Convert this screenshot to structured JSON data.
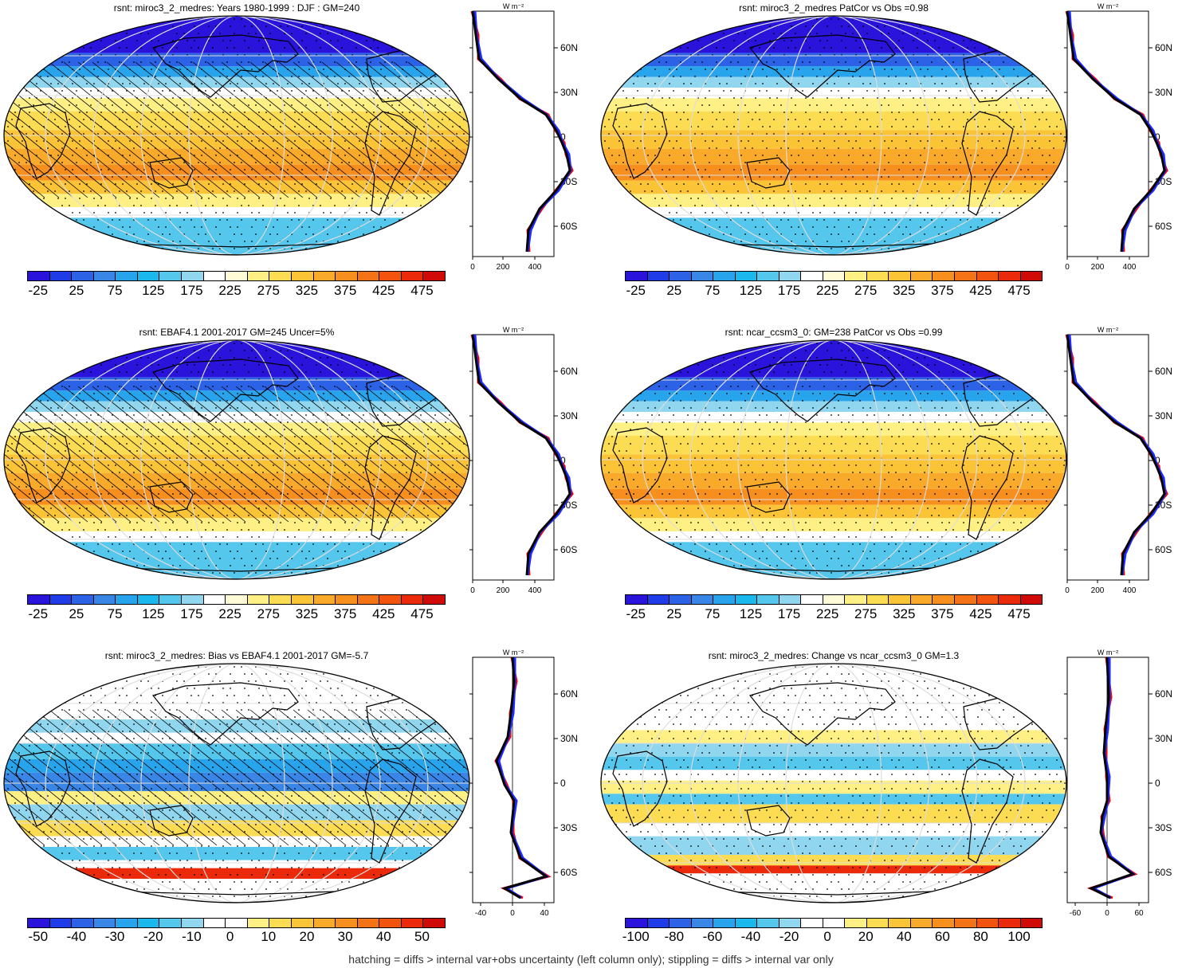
{
  "footer": "hatching = diffs > internal var+obs uncertainty (left column only); stippling = diffs > internal var only",
  "lat_labels": [
    "60N",
    "30N",
    "0",
    "30S",
    "60S"
  ],
  "zonal_unit": "W m⁻²",
  "palettes": {
    "abs": [
      "#2a14dc",
      "#1f3ce8",
      "#2b62e6",
      "#3a86e6",
      "#28a4ec",
      "#1ab8ec",
      "#55c6ec",
      "#8fd6ee",
      "#ffffff",
      "#fffbd6",
      "#fff086",
      "#fcdc52",
      "#fbc437",
      "#f9aa2a",
      "#f78f1e",
      "#f57317",
      "#f25410",
      "#ea2a0a",
      "#d00a06"
    ],
    "bias": [
      "#2a14dc",
      "#1f3ce8",
      "#2b62e6",
      "#3a86e6",
      "#28a4ec",
      "#1ab8ec",
      "#55c6ec",
      "#8fd6ee",
      "#ffffff",
      "#ffffff",
      "#fff086",
      "#fcdc52",
      "#fbc437",
      "#f9aa2a",
      "#f78f1e",
      "#f57317",
      "#f25410",
      "#ea2a0a",
      "#d00a06"
    ]
  },
  "panels": [
    {
      "id": "p1",
      "title": "rsnt: miroc3_2_medres: Years 1980-1999 : DJF : GM=240",
      "colorbar_labels": [
        "-25",
        "25",
        "75",
        "125",
        "175",
        "225",
        "275",
        "325",
        "375",
        "425",
        "475"
      ],
      "palette": "abs",
      "zonal_ticks": [
        "0",
        "200",
        "400"
      ]
    },
    {
      "id": "p2",
      "title": "rsnt: miroc3_2_medres PatCor vs Obs =0.98",
      "colorbar_labels": [
        "-25",
        "25",
        "75",
        "125",
        "175",
        "225",
        "275",
        "325",
        "375",
        "425",
        "475"
      ],
      "palette": "abs",
      "zonal_ticks": [
        "0",
        "200",
        "400"
      ]
    },
    {
      "id": "p3",
      "title": "rsnt: EBAF4.1 2001-2017 GM=245 Uncer=5%",
      "colorbar_labels": [
        "-25",
        "25",
        "75",
        "125",
        "175",
        "225",
        "275",
        "325",
        "375",
        "425",
        "475"
      ],
      "palette": "abs",
      "zonal_ticks": [
        "0",
        "200",
        "400"
      ]
    },
    {
      "id": "p4",
      "title": "rsnt: ncar_ccsm3_0: GM=238 PatCor vs Obs =0.99",
      "colorbar_labels": [
        "-25",
        "25",
        "75",
        "125",
        "175",
        "225",
        "275",
        "325",
        "375",
        "425",
        "475"
      ],
      "palette": "abs",
      "zonal_ticks": [
        "0",
        "200",
        "400"
      ]
    },
    {
      "id": "p5",
      "title": "rsnt: miroc3_2_medres: Bias vs EBAF4.1 2001-2017 GM=-5.7",
      "colorbar_labels": [
        "-50",
        "-40",
        "-30",
        "-20",
        "-10",
        "0",
        "10",
        "20",
        "30",
        "40",
        "50"
      ],
      "palette": "bias",
      "zonal_ticks": [
        "-40",
        "0",
        "40"
      ]
    },
    {
      "id": "p6",
      "title": "rsnt: miroc3_2_medres: Change vs ncar_ccsm3_0 GM=1.3",
      "colorbar_labels": [
        "-100",
        "-80",
        "-60",
        "-40",
        "-20",
        "0",
        "20",
        "40",
        "60",
        "80",
        "100"
      ],
      "palette": "bias",
      "zonal_ticks": [
        "-60",
        "0",
        "60"
      ]
    }
  ]
}
